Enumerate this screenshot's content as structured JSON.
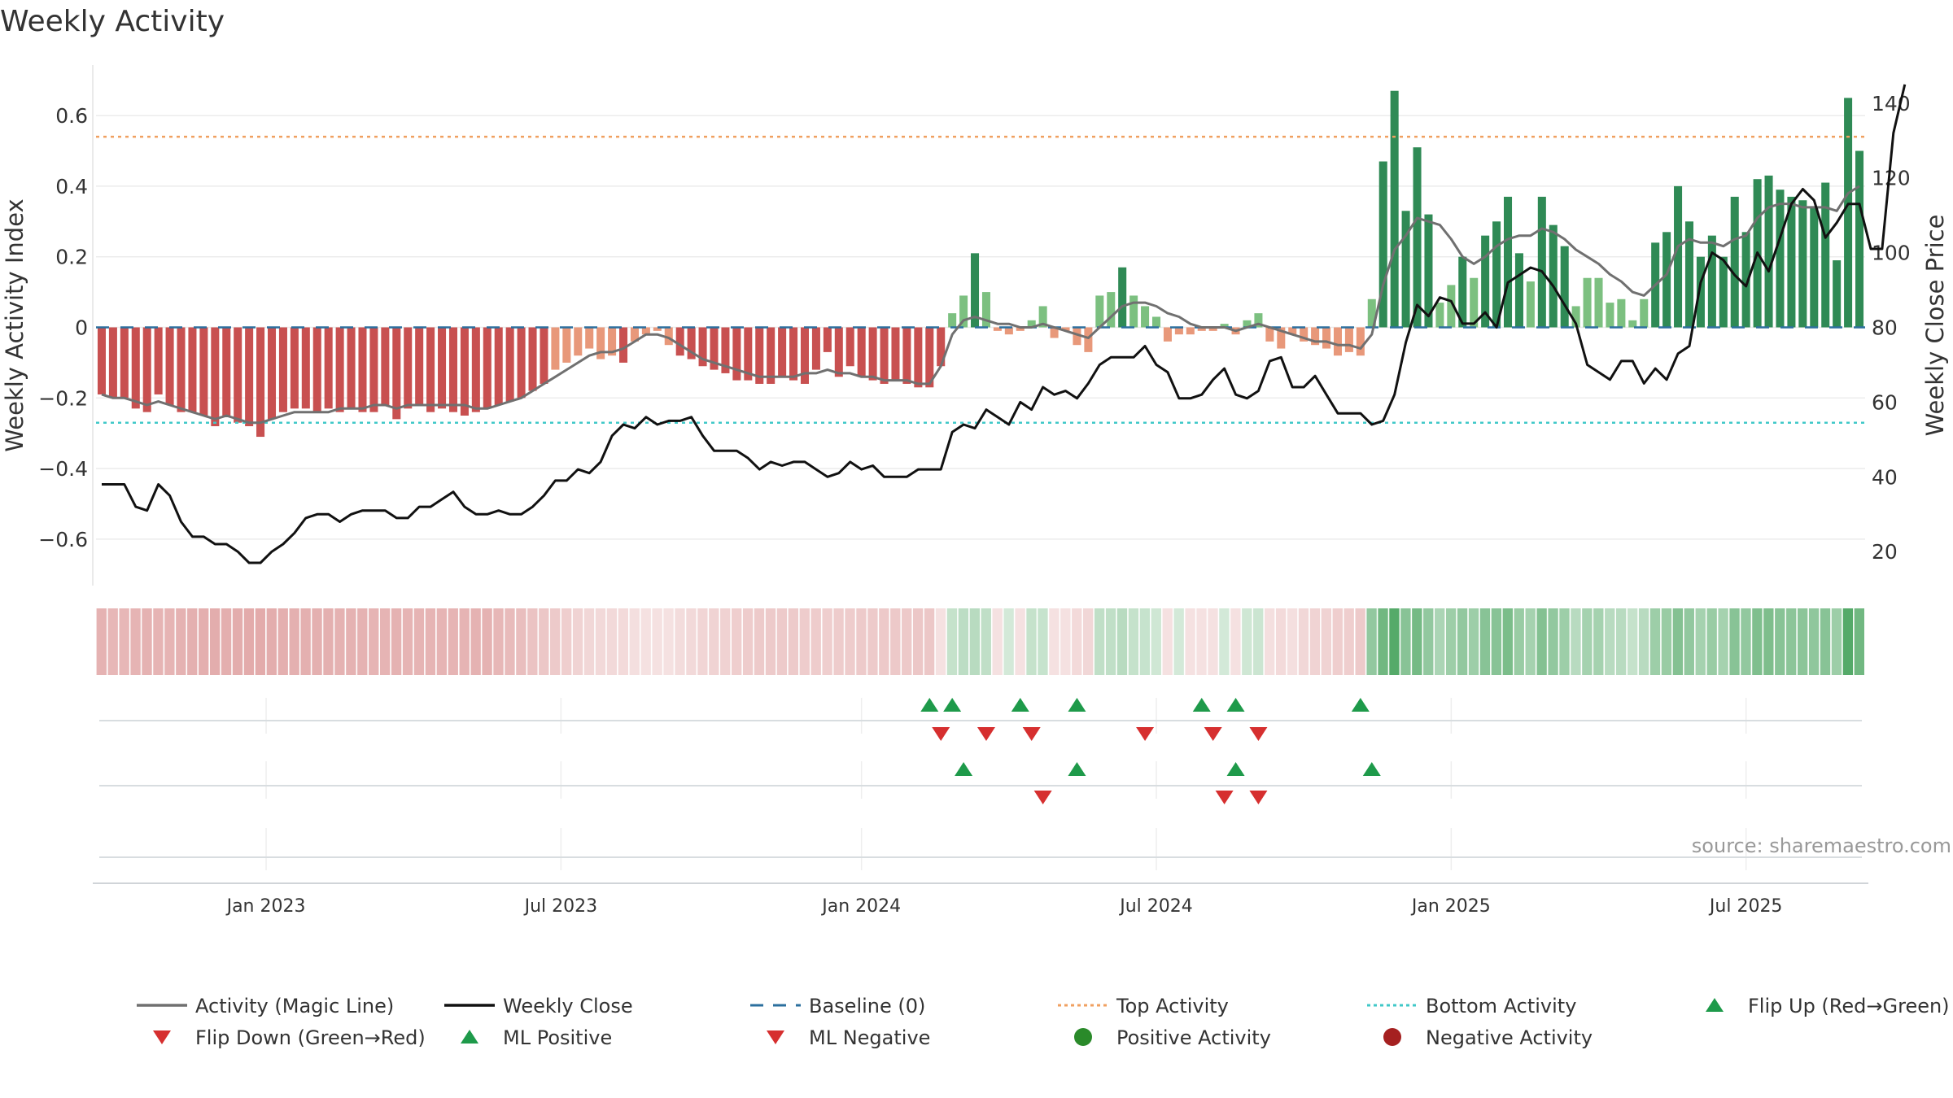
{
  "chart_data": {
    "type": "bar",
    "title": "Weekly Activity",
    "ylabel_left": "Weekly Activity Index",
    "ylabel_right": "Weekly Close Price",
    "ylim_left": [
      -0.72,
      0.72
    ],
    "ylim_right": [
      12,
      148
    ],
    "yticks_left": [
      {
        "value": 0.6,
        "label": "0.6"
      },
      {
        "value": 0.4,
        "label": "0.4"
      },
      {
        "value": 0.2,
        "label": "0.2"
      },
      {
        "value": 0,
        "label": "0"
      },
      {
        "value": -0.2,
        "label": "−0.2"
      },
      {
        "value": -0.4,
        "label": "−0.4"
      },
      {
        "value": -0.6,
        "label": "−0.6"
      }
    ],
    "yticks_right": [
      {
        "value": 140,
        "label": "140"
      },
      {
        "value": 120,
        "label": "120"
      },
      {
        "value": 100,
        "label": "100"
      },
      {
        "value": 80,
        "label": "80"
      },
      {
        "value": 60,
        "label": "60"
      },
      {
        "value": 40,
        "label": "40"
      },
      {
        "value": 20,
        "label": "20"
      }
    ],
    "x_week_range": [
      0,
      156
    ],
    "x_ticks": [
      {
        "week": 15,
        "label": "Jan 2023"
      },
      {
        "week": 41,
        "label": "Jul 2023"
      },
      {
        "week": 67.5,
        "label": "Jan 2024"
      },
      {
        "week": 93.5,
        "label": "Jul 2024"
      },
      {
        "week": 119.5,
        "label": "Jan 2025"
      },
      {
        "week": 145.5,
        "label": "Jul 2025"
      }
    ],
    "top_activity": 0.54,
    "bottom_activity": -0.27,
    "baseline": 0,
    "activity": [
      -0.19,
      -0.2,
      -0.2,
      -0.23,
      -0.24,
      -0.19,
      -0.22,
      -0.24,
      -0.24,
      -0.25,
      -0.28,
      -0.25,
      -0.27,
      -0.28,
      -0.31,
      -0.26,
      -0.24,
      -0.23,
      -0.23,
      -0.24,
      -0.23,
      -0.24,
      -0.23,
      -0.24,
      -0.24,
      -0.22,
      -0.26,
      -0.23,
      -0.22,
      -0.24,
      -0.23,
      -0.24,
      -0.25,
      -0.24,
      -0.23,
      -0.22,
      -0.21,
      -0.2,
      -0.18,
      -0.16,
      -0.12,
      -0.1,
      -0.08,
      -0.06,
      -0.09,
      -0.08,
      -0.1,
      -0.04,
      -0.02,
      -0.01,
      -0.05,
      -0.08,
      -0.09,
      -0.11,
      -0.12,
      -0.13,
      -0.15,
      -0.15,
      -0.16,
      -0.16,
      -0.14,
      -0.15,
      -0.16,
      -0.12,
      -0.07,
      -0.14,
      -0.11,
      -0.14,
      -0.15,
      -0.16,
      -0.15,
      -0.16,
      -0.17,
      -0.17,
      -0.11,
      0.04,
      0.09,
      0.21,
      0.1,
      -0.01,
      -0.02,
      -0.01,
      0.02,
      0.06,
      -0.03,
      -0.01,
      -0.05,
      -0.07,
      0.09,
      0.1,
      0.17,
      0.09,
      0.06,
      0.03,
      -0.04,
      -0.02,
      -0.02,
      -0.01,
      -0.01,
      0.01,
      -0.02,
      0.02,
      0.04,
      -0.04,
      -0.06,
      -0.02,
      -0.04,
      -0.05,
      -0.06,
      -0.08,
      -0.07,
      -0.08,
      0.08,
      0.47,
      0.67,
      0.33,
      0.51,
      0.32,
      0.07,
      0.12,
      0.2,
      0.14,
      0.26,
      0.3,
      0.37,
      0.21,
      0.13,
      0.37,
      0.29,
      0.23,
      0.06,
      0.14,
      0.14,
      0.07,
      0.08,
      0.02,
      0.08,
      0.24,
      0.27,
      0.4,
      0.3,
      0.2,
      0.26,
      0.2,
      0.37,
      0.27,
      0.42,
      0.43,
      0.39,
      0.37,
      0.36,
      0.34,
      0.41,
      0.19,
      0.65,
      0.5
    ],
    "magic_line": [
      -0.19,
      -0.2,
      -0.2,
      -0.21,
      -0.22,
      -0.21,
      -0.22,
      -0.23,
      -0.24,
      -0.25,
      -0.26,
      -0.25,
      -0.26,
      -0.27,
      -0.27,
      -0.26,
      -0.25,
      -0.24,
      -0.24,
      -0.24,
      -0.24,
      -0.23,
      -0.23,
      -0.23,
      -0.22,
      -0.22,
      -0.23,
      -0.22,
      -0.22,
      -0.22,
      -0.22,
      -0.22,
      -0.22,
      -0.23,
      -0.23,
      -0.22,
      -0.21,
      -0.2,
      -0.18,
      -0.16,
      -0.14,
      -0.12,
      -0.1,
      -0.08,
      -0.07,
      -0.07,
      -0.06,
      -0.04,
      -0.02,
      -0.02,
      -0.03,
      -0.05,
      -0.07,
      -0.09,
      -0.1,
      -0.11,
      -0.12,
      -0.13,
      -0.14,
      -0.14,
      -0.14,
      -0.14,
      -0.13,
      -0.13,
      -0.12,
      -0.13,
      -0.13,
      -0.14,
      -0.14,
      -0.15,
      -0.15,
      -0.15,
      -0.16,
      -0.16,
      -0.11,
      -0.02,
      0.02,
      0.03,
      0.02,
      0.01,
      0.01,
      0.0,
      0.0,
      0.01,
      0.0,
      -0.01,
      -0.02,
      -0.03,
      0.0,
      0.03,
      0.06,
      0.07,
      0.07,
      0.06,
      0.04,
      0.03,
      0.01,
      0.0,
      0.0,
      0.0,
      -0.01,
      0.0,
      0.01,
      0.0,
      -0.01,
      -0.02,
      -0.03,
      -0.04,
      -0.04,
      -0.05,
      -0.05,
      -0.06,
      -0.02,
      0.12,
      0.22,
      0.26,
      0.31,
      0.3,
      0.29,
      0.25,
      0.2,
      0.18,
      0.2,
      0.23,
      0.25,
      0.26,
      0.26,
      0.28,
      0.27,
      0.25,
      0.22,
      0.2,
      0.18,
      0.15,
      0.13,
      0.1,
      0.09,
      0.12,
      0.15,
      0.23,
      0.25,
      0.24,
      0.24,
      0.23,
      0.25,
      0.26,
      0.31,
      0.34,
      0.35,
      0.35,
      0.34,
      0.34,
      0.34,
      0.33,
      0.38,
      0.4
    ],
    "weekly_close": [
      38,
      38,
      38,
      32,
      31,
      38,
      35,
      28,
      24,
      24,
      22,
      22,
      20,
      17,
      17,
      20,
      22,
      25,
      29,
      30,
      30,
      28,
      30,
      31,
      31,
      31,
      29,
      29,
      32,
      32,
      34,
      36,
      32,
      30,
      30,
      31,
      30,
      30,
      32,
      35,
      39,
      39,
      42,
      41,
      44,
      51,
      54,
      53,
      56,
      54,
      55,
      55,
      56,
      51,
      47,
      47,
      47,
      45,
      42,
      44,
      43,
      44,
      44,
      42,
      40,
      41,
      44,
      42,
      43,
      40,
      40,
      40,
      42,
      42,
      42,
      52,
      54,
      53,
      58,
      56,
      54,
      60,
      58,
      64,
      62,
      63,
      61,
      65,
      70,
      72,
      72,
      72,
      75,
      70,
      68,
      61,
      61,
      62,
      66,
      69,
      62,
      61,
      63,
      71,
      72,
      64,
      64,
      67,
      62,
      57,
      57,
      57,
      54,
      55,
      62,
      76,
      86,
      83,
      88,
      87,
      81,
      81,
      84,
      80,
      92,
      94,
      96,
      95,
      91,
      86,
      81,
      70,
      68,
      66,
      71,
      71,
      65,
      69,
      66,
      73,
      75,
      92,
      100,
      98,
      94,
      91,
      100,
      95,
      104,
      113,
      117,
      114,
      104,
      108,
      113,
      113,
      101,
      101,
      132,
      145
    ],
    "strength_strip": [
      -0.38,
      -0.36,
      -0.36,
      -0.37,
      -0.38,
      -0.37,
      -0.37,
      -0.38,
      -0.39,
      -0.4,
      -0.41,
      -0.4,
      -0.41,
      -0.42,
      -0.42,
      -0.41,
      -0.4,
      -0.39,
      -0.39,
      -0.39,
      -0.39,
      -0.38,
      -0.38,
      -0.38,
      -0.37,
      -0.37,
      -0.38,
      -0.37,
      -0.37,
      -0.37,
      -0.37,
      -0.37,
      -0.37,
      -0.38,
      -0.38,
      -0.36,
      -0.34,
      -0.32,
      -0.3,
      -0.28,
      -0.26,
      -0.24,
      -0.22,
      -0.2,
      -0.19,
      -0.19,
      -0.18,
      -0.16,
      -0.14,
      -0.14,
      -0.15,
      -0.17,
      -0.19,
      -0.21,
      -0.22,
      -0.23,
      -0.24,
      -0.25,
      -0.26,
      -0.26,
      -0.26,
      -0.26,
      -0.25,
      -0.25,
      -0.24,
      -0.25,
      -0.25,
      -0.26,
      -0.26,
      -0.27,
      -0.27,
      -0.27,
      -0.28,
      -0.28,
      -0.1,
      0.3,
      0.34,
      0.36,
      0.32,
      -0.05,
      0.22,
      -0.15,
      0.3,
      0.28,
      -0.12,
      -0.1,
      -0.18,
      -0.2,
      0.32,
      0.32,
      0.36,
      0.3,
      0.28,
      0.24,
      -0.12,
      0.22,
      -0.1,
      -0.12,
      -0.1,
      0.22,
      -0.14,
      0.24,
      0.26,
      -0.16,
      -0.18,
      -0.16,
      -0.2,
      -0.22,
      -0.22,
      -0.24,
      -0.24,
      -0.26,
      0.55,
      0.72,
      0.85,
      0.6,
      0.7,
      0.55,
      0.42,
      0.5,
      0.55,
      0.5,
      0.6,
      0.6,
      0.66,
      0.52,
      0.45,
      0.62,
      0.55,
      0.5,
      0.36,
      0.45,
      0.45,
      0.36,
      0.36,
      0.3,
      0.36,
      0.5,
      0.52,
      0.62,
      0.55,
      0.45,
      0.52,
      0.45,
      0.6,
      0.55,
      0.64,
      0.65,
      0.6,
      0.58,
      0.58,
      0.56,
      0.6,
      0.5,
      0.85,
      0.72
    ],
    "flip_up_weeks": [
      73,
      75,
      81,
      86,
      97,
      100,
      111
    ],
    "flip_down_weeks": [
      74,
      78,
      82,
      92,
      98,
      102
    ],
    "ml_positive_weeks": [
      76,
      86,
      100,
      112
    ],
    "ml_negative_weeks": [
      83,
      99,
      102
    ],
    "positive_activity_weeks": [],
    "negative_activity_weeks": [],
    "source": "source: sharemaestro.com",
    "legend": [
      {
        "label": "Activity (Magic Line)",
        "kind": "line",
        "color": "#707070"
      },
      {
        "label": "Weekly Close",
        "kind": "line",
        "color": "#111111"
      },
      {
        "label": "Baseline (0)",
        "kind": "dash",
        "color": "#2b6f9e"
      },
      {
        "label": "Top Activity",
        "kind": "dot",
        "color": "#f0a060"
      },
      {
        "label": "Bottom Activity",
        "kind": "dot",
        "color": "#40c8c8"
      },
      {
        "label": "Flip Up (Red→Green)",
        "kind": "tri-up",
        "color": "#1e9a4a"
      },
      {
        "label": "Flip Down (Green→Red)",
        "kind": "tri-down",
        "color": "#d62f2f"
      },
      {
        "label": "ML Positive",
        "kind": "tri-up",
        "color": "#1e9a4a"
      },
      {
        "label": "ML Negative",
        "kind": "tri-down",
        "color": "#d62f2f"
      },
      {
        "label": "Positive Activity",
        "kind": "circle",
        "color": "#2a8a2a"
      },
      {
        "label": "Negative Activity",
        "kind": "circle",
        "color": "#a52020"
      }
    ],
    "colors": {
      "neg_strong": "#c85050",
      "neg_light": "#e8987a",
      "pos_strong": "#2f8a55",
      "pos_light": "#7cc080",
      "close_line": "#111111",
      "magic_line": "#707070"
    }
  }
}
